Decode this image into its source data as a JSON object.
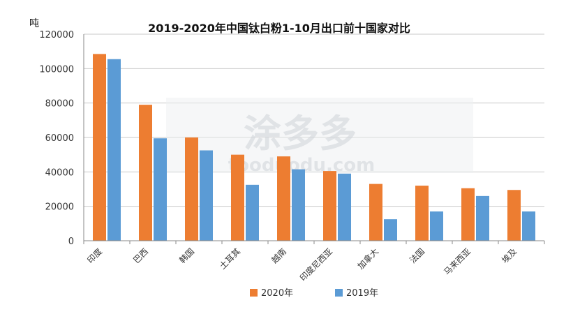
{
  "chart_data": {
    "type": "bar",
    "title": "2019-2020年中国钛白粉1-10月出口前十国家对比",
    "ylabel": "吨",
    "xlabel": "",
    "ylim": [
      0,
      120000
    ],
    "yticks": [
      0,
      20000,
      40000,
      60000,
      80000,
      100000,
      120000
    ],
    "ytick_labels": [
      "0",
      "20000",
      "40000",
      "60000",
      "80000",
      "100000",
      "120000"
    ],
    "categories": [
      "印度",
      "巴西",
      "韩国",
      "土耳其",
      "越南",
      "印度尼西亚",
      "加拿大",
      "法国",
      "马来西亚",
      "埃及"
    ],
    "series": [
      {
        "name": "2020年",
        "color": "#ed7d31",
        "values": [
          108500,
          79000,
          60000,
          50000,
          49000,
          40500,
          33000,
          32000,
          30500,
          29500
        ]
      },
      {
        "name": "2019年",
        "color": "#5b9bd5",
        "values": [
          105500,
          59500,
          52500,
          32500,
          41500,
          39000,
          12500,
          17000,
          26000,
          17000
        ]
      }
    ],
    "grid": true,
    "legend_position": "bottom-center"
  },
  "watermark": {
    "text_cn": "涂多多",
    "text_en": "tooduodu.com"
  }
}
